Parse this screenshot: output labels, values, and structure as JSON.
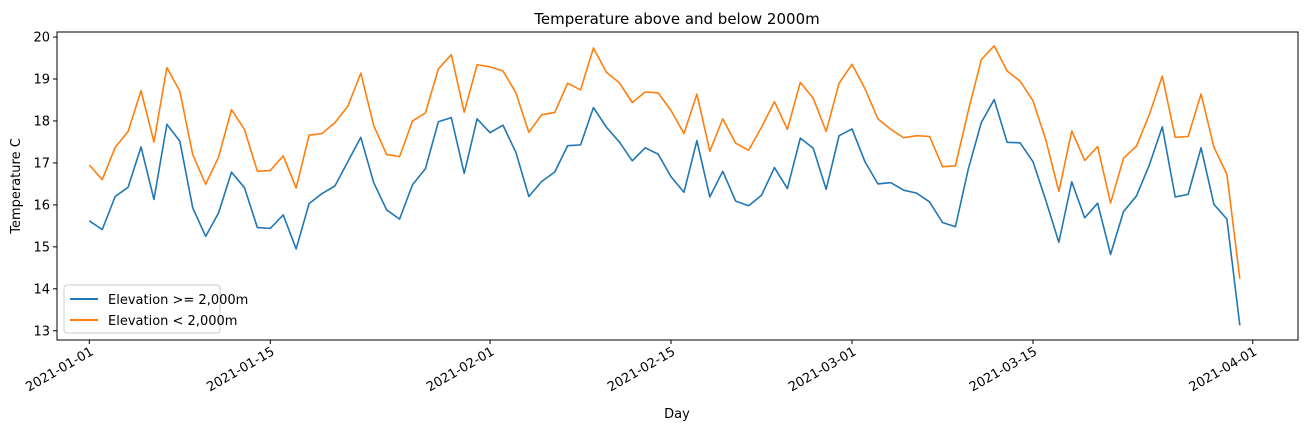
{
  "chart_data": {
    "type": "line",
    "title": "Temperature above and below 2000m",
    "xlabel": "Day",
    "ylabel": "Temperature C",
    "x_start": "2021-01-01",
    "x_range_days": [
      -2.5,
      93.5
    ],
    "ylim": [
      12.78,
      20.12
    ],
    "y_ticks": [
      13,
      14,
      15,
      16,
      17,
      18,
      19,
      20
    ],
    "x_ticks": [
      {
        "label": "2021-01-01",
        "day": 0
      },
      {
        "label": "2021-01-15",
        "day": 14
      },
      {
        "label": "2021-02-01",
        "day": 31
      },
      {
        "label": "2021-02-15",
        "day": 45
      },
      {
        "label": "2021-03-01",
        "day": 59
      },
      {
        "label": "2021-03-15",
        "day": 73
      },
      {
        "label": "2021-04-01",
        "day": 90
      }
    ],
    "grid": false,
    "legend_position": "lower-left",
    "series": [
      {
        "name": "Elevation >= 2,000m",
        "color": "#1f77b4",
        "values": [
          15.62,
          15.41,
          16.2,
          16.42,
          17.38,
          16.13,
          17.92,
          17.52,
          15.93,
          15.25,
          15.81,
          16.78,
          16.41,
          15.46,
          15.44,
          15.76,
          14.95,
          16.03,
          16.27,
          16.45,
          17.03,
          17.61,
          16.53,
          15.88,
          15.66,
          16.48,
          16.86,
          17.98,
          18.08,
          16.75,
          18.05,
          17.72,
          17.9,
          17.25,
          16.2,
          16.56,
          16.78,
          17.41,
          17.43,
          18.32,
          17.85,
          17.5,
          17.05,
          17.36,
          17.21,
          16.67,
          16.3,
          17.53,
          16.19,
          16.8,
          16.09,
          15.98,
          16.23,
          16.89,
          16.39,
          17.59,
          17.35,
          16.37,
          17.65,
          17.81,
          17.03,
          16.5,
          16.53,
          16.35,
          16.28,
          16.07,
          15.58,
          15.48,
          16.86,
          17.96,
          18.51,
          17.49,
          17.48,
          17.03,
          16.1,
          15.11,
          16.55,
          15.69,
          16.04,
          14.82,
          15.84,
          16.21,
          16.95,
          17.86,
          16.19,
          16.25,
          17.36,
          16.01,
          15.66,
          13.13
        ]
      },
      {
        "name": "Elevation < 2,000m",
        "color": "#ff7f0e",
        "values": [
          16.95,
          16.6,
          17.37,
          17.75,
          18.72,
          17.5,
          19.27,
          18.71,
          17.2,
          16.49,
          17.14,
          18.27,
          17.8,
          16.8,
          16.82,
          17.17,
          16.4,
          17.66,
          17.7,
          17.96,
          18.35,
          19.14,
          17.89,
          17.2,
          17.15,
          18.0,
          18.19,
          19.24,
          19.58,
          18.21,
          19.34,
          19.29,
          19.19,
          18.67,
          17.73,
          18.15,
          18.2,
          18.9,
          18.74,
          19.74,
          19.16,
          18.91,
          18.44,
          18.69,
          18.67,
          18.25,
          17.7,
          18.64,
          17.28,
          18.05,
          17.47,
          17.3,
          17.85,
          18.46,
          17.8,
          18.92,
          18.54,
          17.75,
          18.9,
          19.35,
          18.77,
          18.05,
          17.8,
          17.6,
          17.65,
          17.63,
          16.91,
          16.93,
          18.25,
          19.46,
          19.79,
          19.19,
          18.95,
          18.48,
          17.54,
          16.32,
          17.76,
          17.06,
          17.39,
          16.04,
          17.11,
          17.4,
          18.15,
          19.07,
          17.61,
          17.63,
          18.64,
          17.37,
          16.73,
          14.24
        ]
      }
    ]
  }
}
